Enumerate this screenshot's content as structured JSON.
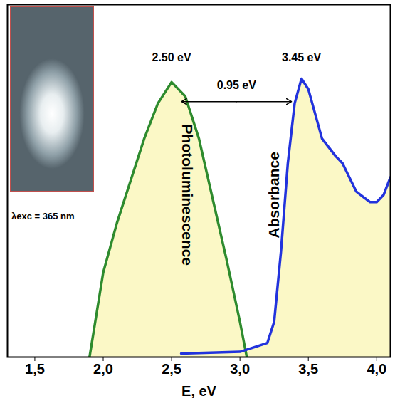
{
  "chart_data": {
    "type": "line",
    "x_label": "E, eV",
    "xlim": [
      1.3,
      4.1
    ],
    "xticks": [
      {
        "value": 1.5,
        "label": "1,5"
      },
      {
        "value": 2.0,
        "label": "2,0"
      },
      {
        "value": 2.5,
        "label": "2,5"
      },
      {
        "value": 3.0,
        "label": "3,0"
      },
      {
        "value": 3.5,
        "label": "3,5"
      },
      {
        "value": 4.0,
        "label": "4,0"
      }
    ],
    "ylim": [
      0,
      1
    ],
    "tick_labels": "x",
    "series": [
      {
        "name": "Photoluminescence",
        "color": "#2e8b2e",
        "x": [
          1.9,
          2.0,
          2.1,
          2.2,
          2.3,
          2.4,
          2.5,
          2.6,
          2.7,
          2.8,
          2.9,
          3.0,
          3.05
        ],
        "values": [
          0.0,
          0.24,
          0.38,
          0.5,
          0.62,
          0.72,
          0.78,
          0.74,
          0.62,
          0.45,
          0.28,
          0.1,
          0.0
        ]
      },
      {
        "name": "Absorbance",
        "color": "#2233dd",
        "x": [
          2.57,
          3.0,
          3.2,
          3.25,
          3.3,
          3.35,
          3.4,
          3.45,
          3.5,
          3.6,
          3.7,
          3.75,
          3.85,
          3.95,
          4.0,
          4.05,
          4.1
        ],
        "values": [
          0.01,
          0.015,
          0.04,
          0.1,
          0.3,
          0.55,
          0.72,
          0.79,
          0.76,
          0.62,
          0.57,
          0.55,
          0.47,
          0.44,
          0.44,
          0.46,
          0.51
        ]
      }
    ],
    "annotations": [
      {
        "text": "2.50 eV",
        "x": 2.5,
        "y": 0.85
      },
      {
        "text": "3.45 eV",
        "x": 3.45,
        "y": 0.85
      },
      {
        "text": "0.95 eV",
        "x": 2.975,
        "y": 0.77
      }
    ],
    "arrow": {
      "x": [
        2.5,
        3.45
      ],
      "y": 0.725
    },
    "inset_label": "λexc = 365 nm"
  }
}
